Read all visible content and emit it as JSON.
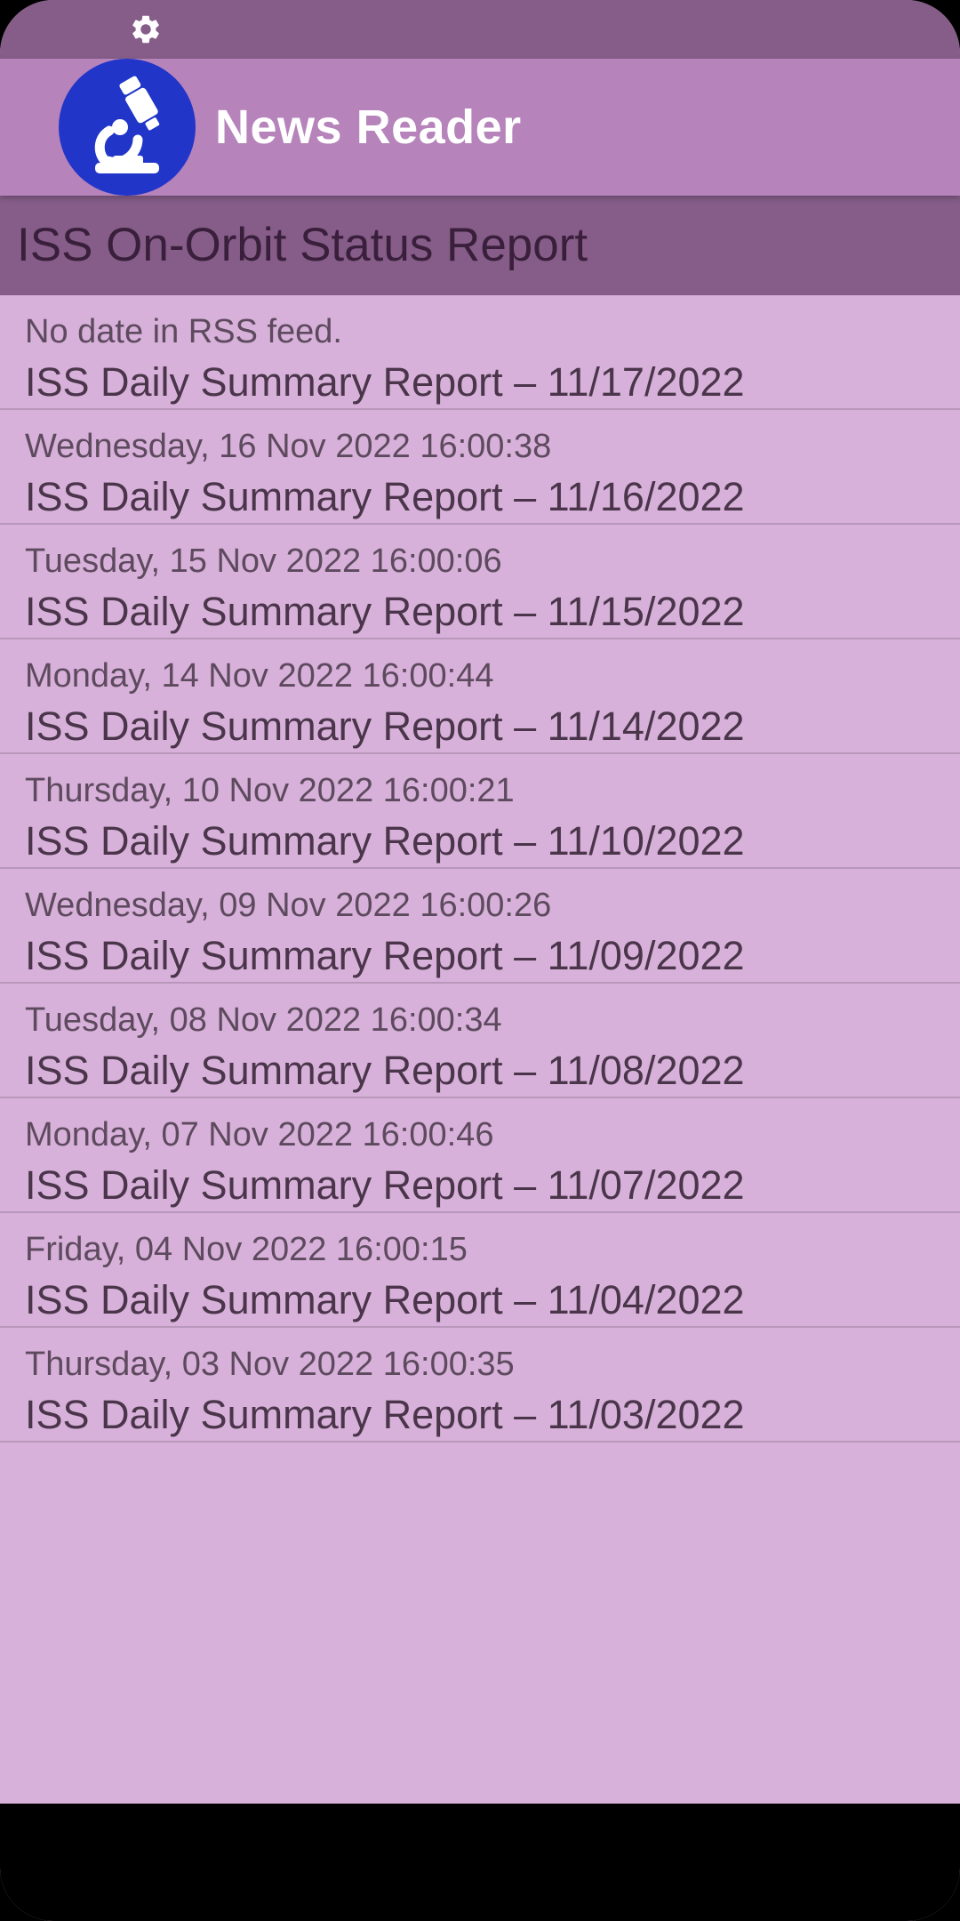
{
  "colors": {
    "status_bar": "#855d88",
    "app_bar": "#b683bb",
    "section_header": "#855d88",
    "list_background": "#d7b1d9",
    "logo_background": "#2135c8",
    "divider": "#b997bb"
  },
  "status_bar": {
    "icon": "gear-icon"
  },
  "app_bar": {
    "logo_icon": "microscope-icon",
    "title": "News Reader"
  },
  "section": {
    "title": "ISS On-Orbit Status Report"
  },
  "feed": {
    "items": [
      {
        "date": "No date in RSS feed.",
        "title": "ISS Daily Summary Report – 11/17/2022"
      },
      {
        "date": "Wednesday, 16 Nov 2022 16:00:38",
        "title": "ISS Daily Summary Report – 11/16/2022"
      },
      {
        "date": "Tuesday, 15 Nov 2022 16:00:06",
        "title": "ISS Daily Summary Report – 11/15/2022"
      },
      {
        "date": "Monday, 14 Nov 2022 16:00:44",
        "title": "ISS Daily Summary Report – 11/14/2022"
      },
      {
        "date": "Thursday, 10 Nov 2022 16:00:21",
        "title": "ISS Daily Summary Report – 11/10/2022"
      },
      {
        "date": "Wednesday, 09 Nov 2022 16:00:26",
        "title": "ISS Daily Summary Report – 11/09/2022"
      },
      {
        "date": "Tuesday, 08 Nov 2022 16:00:34",
        "title": "ISS Daily Summary Report – 11/08/2022"
      },
      {
        "date": "Monday, 07 Nov 2022 16:00:46",
        "title": "ISS Daily Summary Report – 11/07/2022"
      },
      {
        "date": "Friday, 04 Nov 2022 16:00:15",
        "title": "ISS Daily Summary Report – 11/04/2022"
      },
      {
        "date": "Thursday, 03 Nov 2022 16:00:35",
        "title": "ISS Daily Summary Report – 11/03/2022"
      }
    ]
  }
}
